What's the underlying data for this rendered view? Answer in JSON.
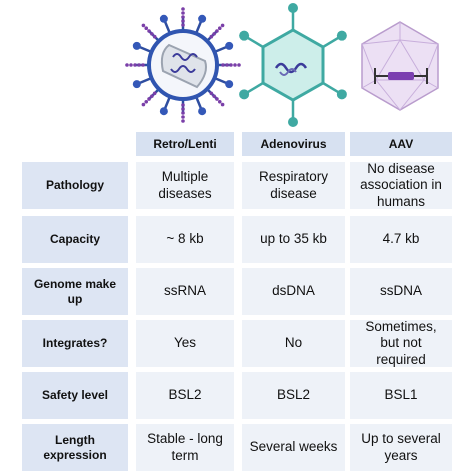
{
  "table": {
    "headers": [
      "Retro/Lenti",
      "Adenovirus",
      "AAV"
    ],
    "rows": [
      [
        "Pathology",
        "Multiple diseases",
        "Respiratory disease",
        "No disease association in humans"
      ],
      [
        "Capacity",
        "~ 8 kb",
        "up to 35 kb",
        "4.7 kb"
      ],
      [
        "Genome make up",
        "ssRNA",
        "dsDNA",
        "ssDNA"
      ],
      [
        "Integrates?",
        "Yes",
        "No",
        "Sometimes, but not required"
      ],
      [
        "Safety level",
        "BSL2",
        "BSL2",
        "BSL1"
      ],
      [
        "Length expression",
        "Stable - long term",
        "Several weeks",
        "Up to several years"
      ]
    ]
  }
}
